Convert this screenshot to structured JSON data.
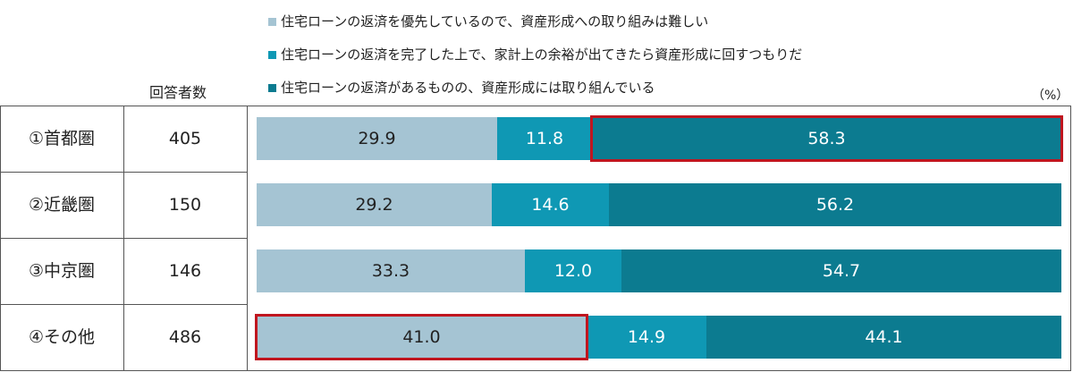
{
  "legend": [
    {
      "label": "住宅ローンの返済を優先しているので、資産形成への取り組みは難しい",
      "color": "#a5c4d3"
    },
    {
      "label": "住宅ローンの返済を完了した上で、家計上の余裕が出てきたら資産形成に回すつもりだ",
      "color": "#0f98b4"
    },
    {
      "label": "住宅ローンの返済があるものの、資産形成には取り組んでいる",
      "color": "#0c7b90"
    }
  ],
  "table": {
    "count_header": "回答者数",
    "unit": "（%）"
  },
  "chart_data": {
    "type": "bar",
    "orientation": "horizontal",
    "stacked": true,
    "categories": [
      "①首都圏",
      "②近畿圏",
      "③中京圏",
      "④その他"
    ],
    "respondents": [
      "405",
      "150",
      "146",
      "486"
    ],
    "series": [
      {
        "name": "住宅ローンの返済を優先しているので、資産形成への取り組みは難しい",
        "color": "#a5c4d3",
        "values": [
          29.9,
          29.2,
          33.3,
          41.0
        ],
        "labels": [
          "29.9",
          "29.2",
          "33.3",
          "41.0"
        ]
      },
      {
        "name": "住宅ローンの返済を完了した上で、家計上の余裕が出てきたら資産形成に回すつもりだ",
        "color": "#0f98b4",
        "values": [
          11.8,
          14.6,
          12.0,
          14.9
        ],
        "labels": [
          "11.8",
          "14.6",
          "12.0",
          "14.9"
        ]
      },
      {
        "name": "住宅ローンの返済があるものの、資産形成には取り組んでいる",
        "color": "#0c7b90",
        "values": [
          58.3,
          56.2,
          54.7,
          44.1
        ],
        "labels": [
          "58.3",
          "56.2",
          "54.7",
          "44.1"
        ]
      }
    ],
    "xlim": [
      0,
      100
    ],
    "highlighted": [
      {
        "category_index": 0,
        "series_index": 2
      },
      {
        "category_index": 3,
        "series_index": 0
      }
    ]
  }
}
